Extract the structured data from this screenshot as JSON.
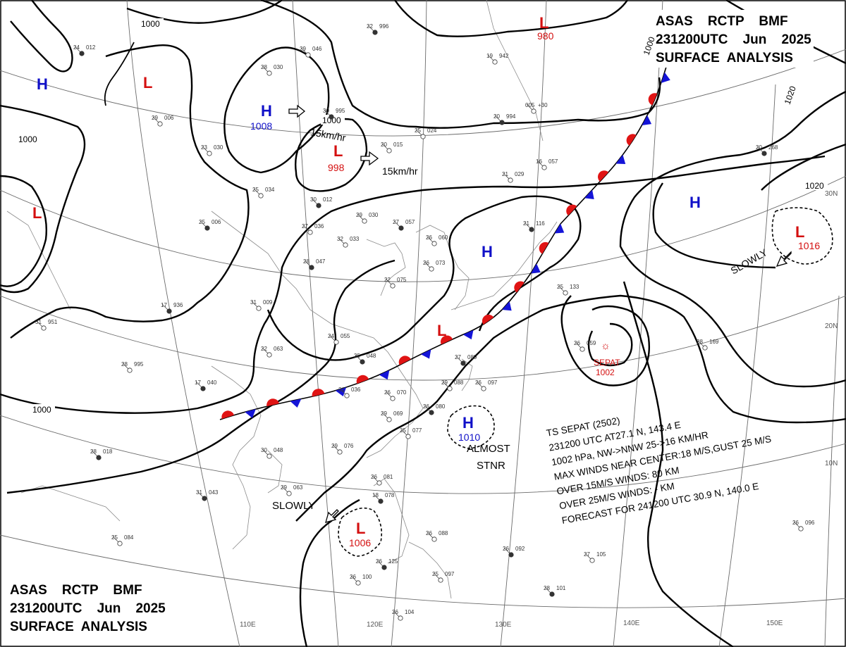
{
  "header_top": {
    "line1": "ASAS    RCTP    BMF",
    "line2": "231200UTC    Jun    2025",
    "line3": "SURFACE  ANALYSIS"
  },
  "header_bottom": {
    "line1": "ASAS    RCTP    BMF",
    "line2": "231200UTC    Jun    2025",
    "line3": "SURFACE  ANALYSIS"
  },
  "colors": {
    "high": "#1010c8",
    "low": "#d41010",
    "warm_front": "#e01414",
    "cold_front": "#1414d8"
  },
  "pressure_centers": [
    {
      "key": "h_nw",
      "type": "H",
      "value": ""
    },
    {
      "key": "l_nw",
      "type": "L",
      "value": ""
    },
    {
      "key": "h_mongolia",
      "type": "H",
      "value": "1008"
    },
    {
      "key": "l_north",
      "type": "L",
      "value": "998"
    },
    {
      "key": "l_ne",
      "type": "L",
      "value": "980"
    },
    {
      "key": "l_west",
      "type": "L",
      "value": ""
    },
    {
      "key": "h_east_china",
      "type": "H",
      "value": ""
    },
    {
      "key": "l_front",
      "type": "L",
      "value": ""
    },
    {
      "key": "h_pacific",
      "type": "H",
      "value": ""
    },
    {
      "key": "l_far_east",
      "type": "L",
      "value": "1016"
    },
    {
      "key": "h_philippine_sea",
      "type": "H",
      "value": "1010"
    },
    {
      "key": "l_scs",
      "type": "L",
      "value": "1006"
    }
  ],
  "isobar_labels": {
    "i1000_top": "1000",
    "i1000_left": "1000",
    "i1000_mid": "1000",
    "i1000_bottom": "1000",
    "i1020_right": "1020",
    "i1020_east": "1020",
    "i1000_ne": "1000"
  },
  "motion_labels": {
    "north_speed": "15km/hr",
    "center_speed": "15km/hr",
    "east_slowly": "SLOWLY",
    "south_slowly": "SLOWLY",
    "almost": "ALMOST",
    "stnr": "STNR"
  },
  "storm": {
    "name": "SEPAT",
    "pressure": "1002"
  },
  "storm_info": [
    "TS  SEPAT  (2502)",
    "231200 UTC  AT27.1 N, 143.4 E",
    "1002 hPa, NW->NNW  25->16 KM/HR",
    "MAX WINDS NEAR CENTER:18 M/S,GUST 25 M/S",
    "OVER 15M/S WINDS: 80 KM",
    "OVER 25M/S WINDS: - KM",
    "FORECAST FOR 241200 UTC 30.9 N, 140.0 E"
  ],
  "lon_labels": [
    "110E",
    "120E",
    "130E",
    "140E",
    "150E"
  ],
  "lat_labels": [
    "30N",
    "20N",
    "10N"
  ],
  "stations": [
    {
      "t": "24",
      "p": "012"
    },
    {
      "t": "29",
      "p": "046"
    },
    {
      "t": "28",
      "p": "030"
    },
    {
      "t": "22",
      "p": "996"
    },
    {
      "t": "29",
      "p": "006"
    },
    {
      "t": "23",
      "p": "030"
    },
    {
      "t": "30",
      "p": "995"
    },
    {
      "t": "20",
      "p": "015"
    },
    {
      "t": "25",
      "p": "024"
    },
    {
      "t": "20",
      "p": "994"
    },
    {
      "t": "005",
      "p": "+30"
    },
    {
      "t": "25",
      "p": "034"
    },
    {
      "t": "30",
      "p": "012"
    },
    {
      "t": "27",
      "p": "036"
    },
    {
      "t": "29",
      "p": "030"
    },
    {
      "t": "27",
      "p": "057"
    },
    {
      "t": "21",
      "p": "029"
    },
    {
      "t": "16",
      "p": "057"
    },
    {
      "t": "25",
      "p": "006"
    },
    {
      "t": "32",
      "p": "033"
    },
    {
      "t": "26",
      "p": "060"
    },
    {
      "t": "28",
      "p": "047"
    },
    {
      "t": "26",
      "p": "073"
    },
    {
      "t": "22",
      "p": "075"
    },
    {
      "t": "21",
      "p": "116"
    },
    {
      "t": "25",
      "p": "133"
    },
    {
      "t": "31",
      "p": "009"
    },
    {
      "t": "17",
      "p": "936"
    },
    {
      "t": "31",
      "p": "951"
    },
    {
      "t": "24",
      "p": "055"
    },
    {
      "t": "25",
      "p": "048"
    },
    {
      "t": "22",
      "p": "063"
    },
    {
      "t": "28",
      "p": "995"
    },
    {
      "t": "17",
      "p": "040"
    },
    {
      "t": "31",
      "p": "036"
    },
    {
      "t": "26",
      "p": "070"
    },
    {
      "t": "27",
      "p": "089"
    },
    {
      "t": "29",
      "p": "088"
    },
    {
      "t": "26",
      "p": "097"
    },
    {
      "t": "26",
      "p": "080"
    },
    {
      "t": "29",
      "p": "069"
    },
    {
      "t": "25",
      "p": "077"
    },
    {
      "t": "28",
      "p": "018"
    },
    {
      "t": "30",
      "p": "048"
    },
    {
      "t": "29",
      "p": "076"
    },
    {
      "t": "31",
      "p": "043"
    },
    {
      "t": "29",
      "p": "063"
    },
    {
      "t": "26",
      "p": "081"
    },
    {
      "t": "18",
      "p": "078"
    },
    {
      "t": "25",
      "p": "084"
    },
    {
      "t": "26",
      "p": "088"
    },
    {
      "t": "26",
      "p": "092"
    },
    {
      "t": "27",
      "p": "105"
    },
    {
      "t": "26",
      "p": "096"
    },
    {
      "t": "26",
      "p": "125"
    },
    {
      "t": "26",
      "p": "100"
    },
    {
      "t": "25",
      "p": "097"
    },
    {
      "t": "28",
      "p": "101"
    },
    {
      "t": "26",
      "p": "104"
    },
    {
      "t": "28",
      "p": "169"
    },
    {
      "t": "20",
      "p": "268"
    },
    {
      "t": "26",
      "p": "059"
    },
    {
      "t": "19",
      "p": "942"
    }
  ]
}
